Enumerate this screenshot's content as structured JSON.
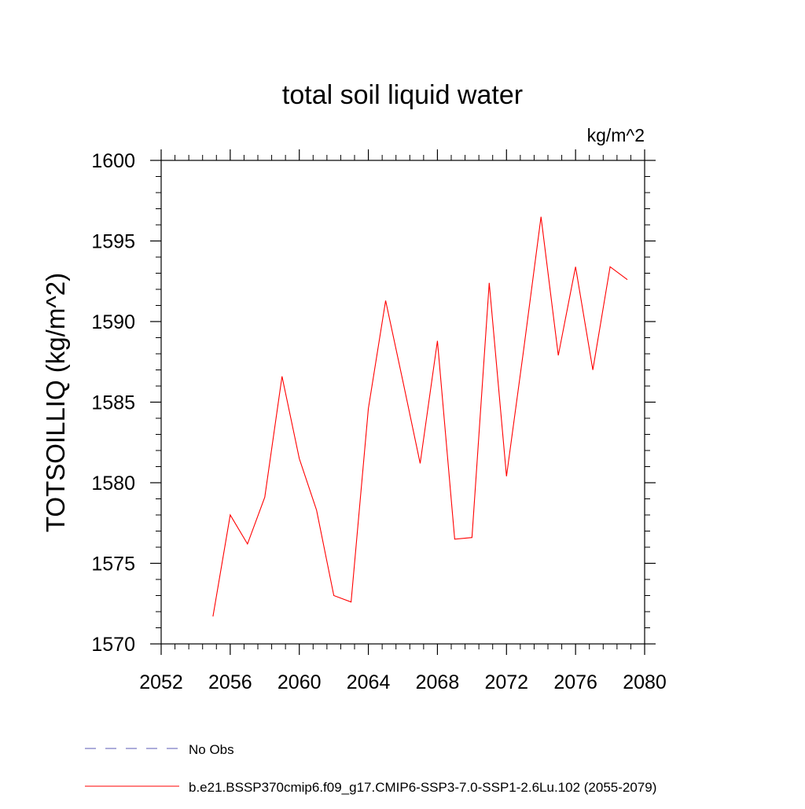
{
  "chart_data": {
    "type": "line",
    "title": "total soil liquid water",
    "units_label": "kg/m^2",
    "ylabel": "TOTSOILLIQ  (kg/m^2)",
    "xlabel": "",
    "xlim": [
      2052,
      2080
    ],
    "ylim": [
      1570,
      1600
    ],
    "x_ticks": [
      2052,
      2056,
      2060,
      2064,
      2068,
      2072,
      2076,
      2080
    ],
    "y_ticks": [
      1570,
      1575,
      1580,
      1585,
      1590,
      1595,
      1600
    ],
    "grid": false,
    "legend_position": "bottom-left",
    "series": [
      {
        "name": "b.e21.BSSP370cmip6.f09_g17.CMIP6-SSP3-7.0-SSP1-2.6Lu.102 (2055-2079)",
        "color": "#ff0000",
        "dash": "solid",
        "x": [
          2055,
          2056,
          2057,
          2058,
          2059,
          2060,
          2061,
          2062,
          2063,
          2064,
          2065,
          2066,
          2067,
          2068,
          2069,
          2070,
          2071,
          2072,
          2073,
          2074,
          2075,
          2076,
          2077,
          2078,
          2079
        ],
        "y": [
          1571.7,
          1578.0,
          1576.2,
          1579.1,
          1586.6,
          1581.5,
          1578.3,
          1573.0,
          1572.6,
          1584.6,
          1591.3,
          1586.3,
          1581.2,
          1588.8,
          1576.5,
          1576.6,
          1592.4,
          1580.4,
          1588.3,
          1596.5,
          1587.9,
          1593.4,
          1587.0,
          1593.4,
          1592.6
        ]
      }
    ],
    "legend": [
      {
        "label": "No Obs",
        "color": "#5a5ab4",
        "dash": "dashed"
      },
      {
        "label": "b.e21.BSSP370cmip6.f09_g17.CMIP6-SSP3-7.0-SSP1-2.6Lu.102 (2055-2079)",
        "color": "#ff0000",
        "dash": "solid"
      }
    ]
  }
}
